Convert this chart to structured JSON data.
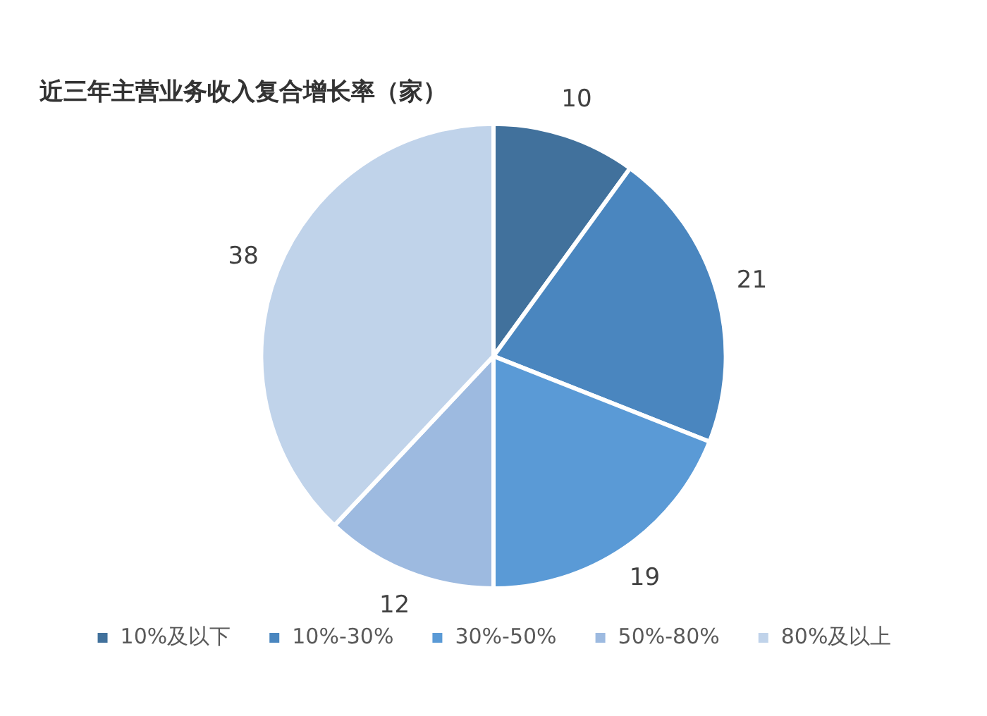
{
  "chart_data": {
    "type": "pie",
    "title": "近三年主营业务收入复合增长率（家）",
    "categories": [
      "10%及以下",
      "10%-30%",
      "30%-50%",
      "50%-80%",
      "80%及以上"
    ],
    "values": [
      10,
      21,
      19,
      12,
      38
    ],
    "colors": [
      "#41719c",
      "#4a86bf",
      "#5a9ad6",
      "#9dbae0",
      "#c0d3ea"
    ],
    "data_labels": true,
    "legend": "bottom"
  }
}
